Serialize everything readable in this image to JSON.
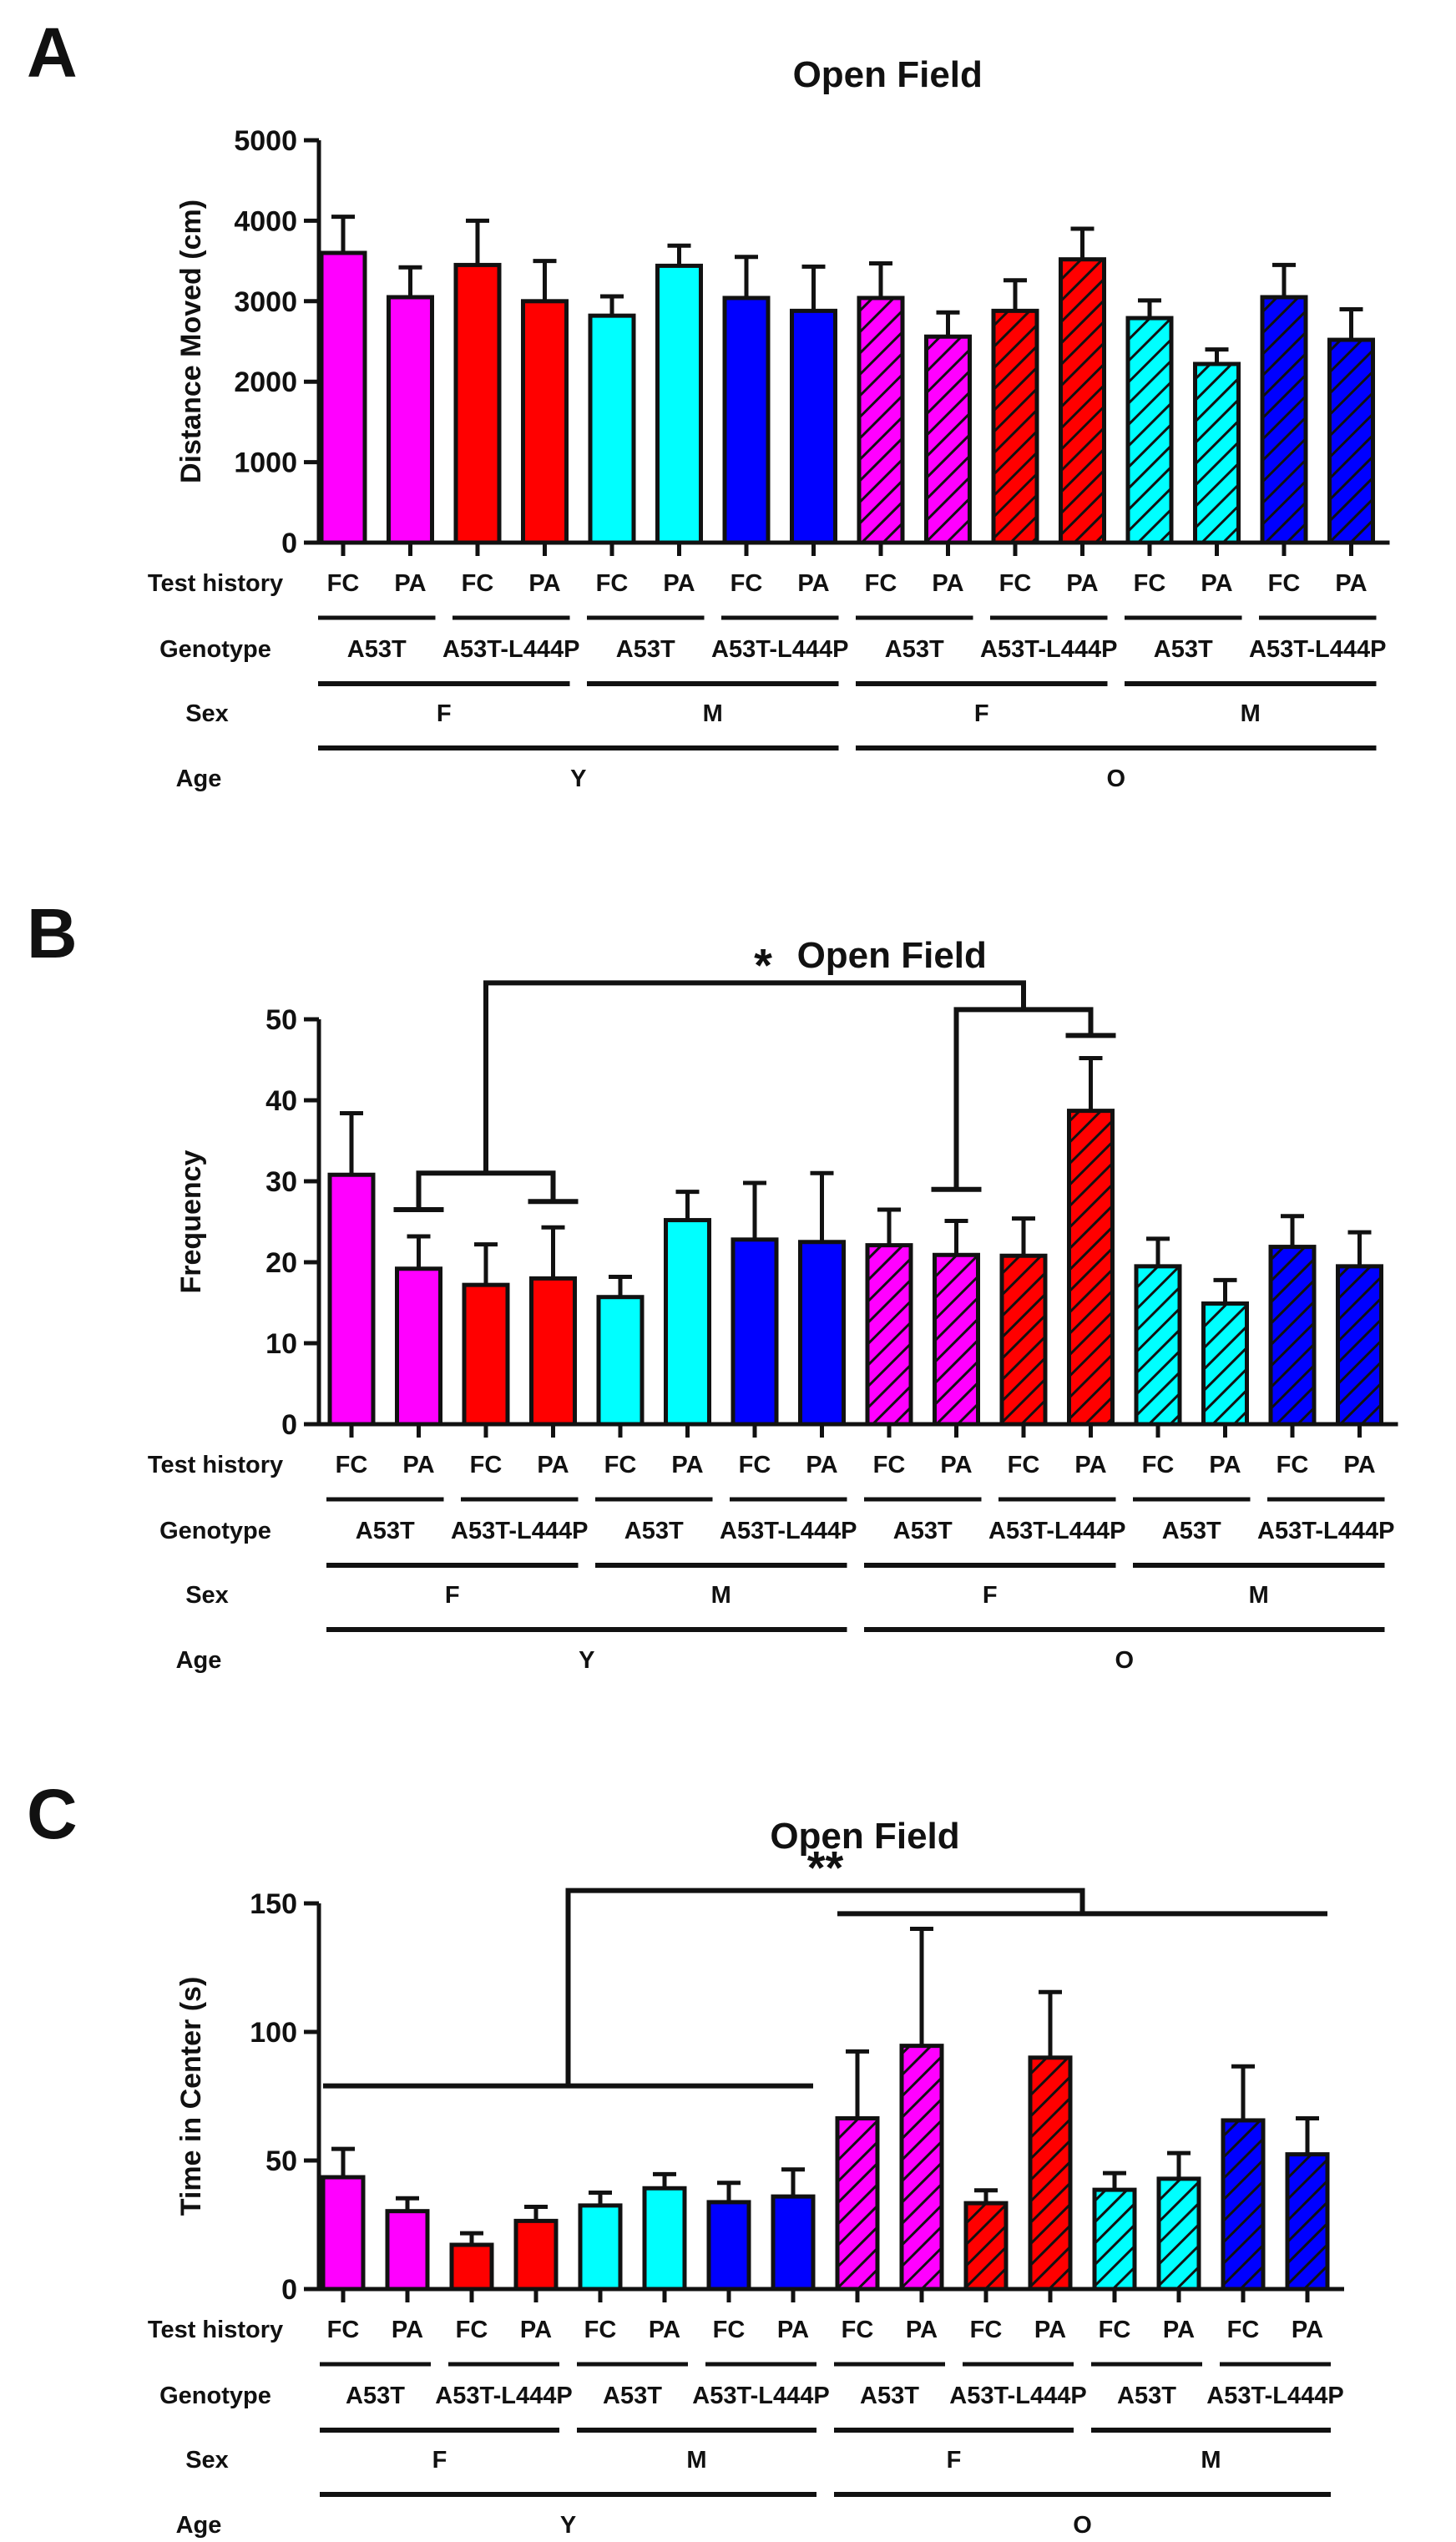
{
  "chart_data": [
    {
      "type": "bar",
      "panel_label": "A",
      "title": "Open Field",
      "ylabel": "Distance Moved (cm)",
      "ylim": [
        0,
        5000
      ],
      "yticks": [
        0,
        1000,
        2000,
        3000,
        4000,
        5000
      ],
      "categories": [
        "FC",
        "PA",
        "FC",
        "PA",
        "FC",
        "PA",
        "FC",
        "PA",
        "FC",
        "PA",
        "FC",
        "PA",
        "FC",
        "PA",
        "FC",
        "PA"
      ],
      "values": [
        3600,
        3050,
        3450,
        3000,
        2820,
        3440,
        3040,
        2880,
        3040,
        2560,
        2880,
        3520,
        2790,
        2220,
        3050,
        2520
      ],
      "errors": [
        450,
        370,
        550,
        500,
        240,
        250,
        510,
        550,
        430,
        300,
        380,
        380,
        220,
        180,
        400,
        380
      ],
      "significance": [],
      "grouping": {
        "test_history_label": "Test history",
        "genotype_label": "Genotype",
        "genotypes": [
          "A53T",
          "A53T-L444P",
          "A53T",
          "A53T-L444P",
          "A53T",
          "A53T-L444P",
          "A53T",
          "A53T-L444P"
        ],
        "sex_label": "Sex",
        "sexes": [
          "F",
          "M",
          "F",
          "M"
        ],
        "age_label": "Age",
        "ages": [
          "Y",
          "O"
        ]
      }
    },
    {
      "type": "bar",
      "panel_label": "B",
      "title": "Open Field",
      "ylabel": "Frequency",
      "ylim": [
        0,
        50
      ],
      "yticks": [
        0,
        10,
        20,
        30,
        40,
        50
      ],
      "categories": [
        "FC",
        "PA",
        "FC",
        "PA",
        "FC",
        "PA",
        "FC",
        "PA",
        "FC",
        "PA",
        "FC",
        "PA",
        "FC",
        "PA",
        "FC",
        "PA"
      ],
      "values": [
        30.8,
        19.2,
        17.2,
        18.0,
        15.7,
        25.2,
        22.8,
        22.5,
        22.1,
        20.9,
        20.8,
        38.7,
        19.5,
        14.9,
        21.9,
        19.5
      ],
      "errors": [
        7.6,
        4.0,
        5.0,
        6.3,
        2.5,
        3.5,
        7.0,
        8.5,
        4.4,
        4.2,
        4.6,
        6.5,
        3.4,
        2.9,
        3.8,
        4.2
      ],
      "significance": [
        {
          "label": "*",
          "left": [
            1,
            3
          ],
          "right": [
            9,
            11
          ]
        }
      ],
      "grouping": {
        "test_history_label": "Test history",
        "genotype_label": "Genotype",
        "genotypes": [
          "A53T",
          "A53T-L444P",
          "A53T",
          "A53T-L444P",
          "A53T",
          "A53T-L444P",
          "A53T",
          "A53T-L444P"
        ],
        "sex_label": "Sex",
        "sexes": [
          "F",
          "M",
          "F",
          "M"
        ],
        "age_label": "Age",
        "ages": [
          "Y",
          "O"
        ]
      }
    },
    {
      "type": "bar",
      "panel_label": "C",
      "title": "Open Field",
      "ylabel": "Time in Center (s)",
      "ylim": [
        0,
        150
      ],
      "yticks": [
        0,
        50,
        100,
        150
      ],
      "categories": [
        "FC",
        "PA",
        "FC",
        "PA",
        "FC",
        "PA",
        "FC",
        "PA",
        "FC",
        "PA",
        "FC",
        "PA",
        "FC",
        "PA",
        "FC",
        "PA"
      ],
      "values": [
        43.5,
        30.3,
        17.2,
        26.5,
        32.5,
        39.2,
        33.8,
        36.0,
        66.4,
        94.6,
        33.4,
        90.0,
        38.6,
        42.9,
        65.6,
        52.4
      ],
      "errors": [
        11.0,
        5.0,
        4.5,
        5.5,
        5.0,
        5.5,
        7.5,
        10.5,
        26.0,
        45.5,
        5.0,
        25.5,
        6.5,
        10.0,
        21.0,
        14.0
      ],
      "significance": [
        {
          "label": "**",
          "left": [
            0,
            7
          ],
          "right": [
            8,
            15
          ],
          "left_value": 79,
          "right_value": 146,
          "join_value": 155
        }
      ],
      "grouping": {
        "test_history_label": "Test history",
        "genotype_label": "Genotype",
        "genotypes": [
          "A53T",
          "A53T-L444P",
          "A53T",
          "A53T-L444P",
          "A53T",
          "A53T-L444P",
          "A53T",
          "A53T-L444P"
        ],
        "sex_label": "Sex",
        "sexes": [
          "F",
          "M",
          "F",
          "M"
        ],
        "age_label": "Age",
        "ages": [
          "Y",
          "O"
        ]
      }
    }
  ],
  "series_colors": [
    "#ff00ff",
    "#ff0000",
    "#00ffff",
    "#0000ff"
  ],
  "hatched_groups": [
    "O"
  ]
}
